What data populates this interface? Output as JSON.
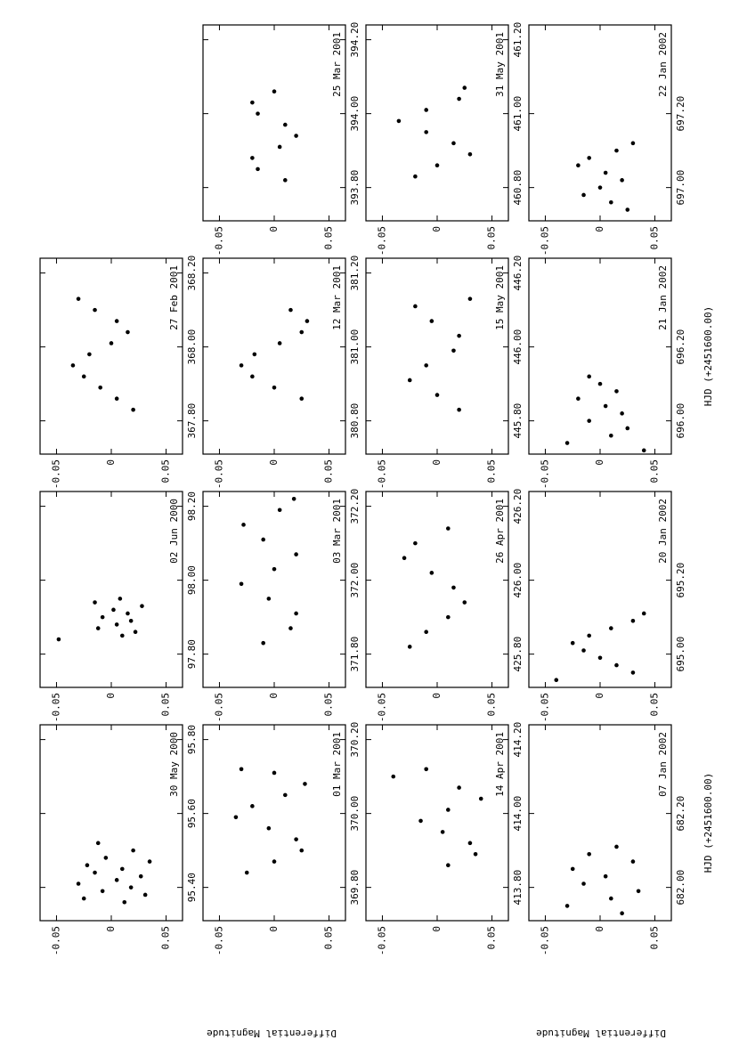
{
  "axis_labels": {
    "y": [
      "Differential Magnitude",
      "Differential Magnitude"
    ],
    "x": [
      "HJD (+2451600.00)",
      "HJD (+2451600.00)"
    ]
  },
  "chart_data": [
    {
      "type": "scatter",
      "title": "30 May 2000",
      "color": "#000000",
      "xlim": [
        95.31,
        95.84
      ],
      "xticks": [
        {
          "value": 95.4,
          "label": "95.40"
        },
        {
          "value": 95.6,
          "label": "95.60"
        },
        {
          "value": 95.8,
          "label": "95.80"
        }
      ],
      "ylim": [
        -0.065,
        0.065
      ],
      "yticks": [
        -0.05,
        0,
        0.05
      ],
      "x": [
        95.36,
        95.37,
        95.38,
        95.39,
        95.4,
        95.41,
        95.42,
        95.43,
        95.44,
        95.45,
        95.46,
        95.47,
        95.48,
        95.5,
        95.52
      ],
      "values": [
        0.012,
        -0.025,
        0.031,
        -0.008,
        0.018,
        -0.03,
        0.005,
        0.027,
        -0.015,
        0.01,
        -0.022,
        0.035,
        -0.005,
        0.02,
        -0.012
      ]
    },
    {
      "type": "scatter",
      "title": "02 Jun 2000",
      "color": "#000000",
      "xlim": [
        97.71,
        98.24
      ],
      "xticks": [
        {
          "value": 97.8,
          "label": "97.80"
        },
        {
          "value": 98.0,
          "label": "98.00"
        },
        {
          "value": 98.2,
          "label": "98.20"
        }
      ],
      "ylim": [
        -0.065,
        0.065
      ],
      "yticks": [
        -0.05,
        0,
        0.05
      ],
      "x": [
        97.84,
        97.85,
        97.86,
        97.87,
        97.88,
        97.89,
        97.9,
        97.91,
        97.92,
        97.93,
        97.94,
        97.95
      ],
      "values": [
        -0.048,
        0.01,
        0.022,
        -0.012,
        0.005,
        0.018,
        -0.008,
        0.015,
        0.002,
        0.028,
        -0.015,
        0.008
      ]
    },
    {
      "type": "scatter",
      "title": "27 Feb 2001",
      "color": "#000000",
      "xlim": [
        367.71,
        368.24
      ],
      "xticks": [
        {
          "value": 367.8,
          "label": "367.80"
        },
        {
          "value": 368.0,
          "label": "368.00"
        },
        {
          "value": 368.2,
          "label": "368.20"
        }
      ],
      "ylim": [
        -0.065,
        0.065
      ],
      "yticks": [
        -0.05,
        0,
        0.05
      ],
      "x": [
        367.83,
        367.86,
        367.89,
        367.92,
        367.95,
        367.98,
        368.01,
        368.04,
        368.07,
        368.1,
        368.13
      ],
      "values": [
        0.02,
        0.005,
        -0.01,
        -0.025,
        -0.035,
        -0.02,
        0.0,
        0.015,
        0.005,
        -0.015,
        -0.03
      ]
    },
    {
      "type": "scatter",
      "title": "01 Mar 2001",
      "color": "#000000",
      "xlim": [
        369.71,
        370.24
      ],
      "xticks": [
        {
          "value": 369.8,
          "label": "369.80"
        },
        {
          "value": 370.0,
          "label": "370.00"
        },
        {
          "value": 370.2,
          "label": "370.20"
        }
      ],
      "ylim": [
        -0.065,
        0.065
      ],
      "yticks": [
        -0.05,
        0,
        0.05
      ],
      "x": [
        369.84,
        369.87,
        369.9,
        369.93,
        369.96,
        369.99,
        370.02,
        370.05,
        370.08,
        370.11,
        370.12
      ],
      "values": [
        -0.025,
        0.0,
        0.025,
        0.02,
        -0.005,
        -0.035,
        -0.02,
        0.01,
        0.028,
        0.0,
        -0.03
      ]
    },
    {
      "type": "scatter",
      "title": "03 Mar 2001",
      "color": "#000000",
      "xlim": [
        371.71,
        372.24
      ],
      "xticks": [
        {
          "value": 371.8,
          "label": "371.80"
        },
        {
          "value": 372.0,
          "label": "372.00"
        },
        {
          "value": 372.2,
          "label": "372.20"
        }
      ],
      "ylim": [
        -0.065,
        0.065
      ],
      "yticks": [
        -0.05,
        0,
        0.05
      ],
      "x": [
        371.83,
        371.87,
        371.91,
        371.95,
        371.99,
        372.03,
        372.07,
        372.11,
        372.15,
        372.19,
        372.22
      ],
      "values": [
        -0.01,
        0.015,
        0.02,
        -0.005,
        -0.03,
        0.0,
        0.02,
        -0.01,
        -0.028,
        0.005,
        0.018
      ]
    },
    {
      "type": "scatter",
      "title": "12 Mar 2001",
      "color": "#000000",
      "xlim": [
        380.71,
        381.24
      ],
      "xticks": [
        {
          "value": 380.8,
          "label": "380.80"
        },
        {
          "value": 381.0,
          "label": "381.00"
        },
        {
          "value": 381.2,
          "label": "381.20"
        }
      ],
      "ylim": [
        -0.065,
        0.065
      ],
      "yticks": [
        -0.05,
        0,
        0.05
      ],
      "x": [
        380.86,
        380.89,
        380.92,
        380.95,
        380.98,
        381.01,
        381.04,
        381.07,
        381.1
      ],
      "values": [
        0.025,
        0.0,
        -0.02,
        -0.03,
        -0.018,
        0.005,
        0.025,
        0.03,
        0.015
      ]
    },
    {
      "type": "scatter",
      "title": "25 Mar 2001",
      "color": "#000000",
      "xlim": [
        393.71,
        394.24
      ],
      "xticks": [
        {
          "value": 393.8,
          "label": "393.80"
        },
        {
          "value": 394.0,
          "label": "394.00"
        },
        {
          "value": 394.2,
          "label": "394.20"
        }
      ],
      "ylim": [
        -0.065,
        0.065
      ],
      "yticks": [
        -0.05,
        0,
        0.05
      ],
      "x": [
        393.82,
        393.85,
        393.88,
        393.91,
        393.94,
        393.97,
        394.0,
        394.03,
        394.06
      ],
      "values": [
        0.01,
        -0.015,
        -0.02,
        0.005,
        0.02,
        0.01,
        -0.015,
        -0.02,
        0.0
      ]
    },
    {
      "type": "scatter",
      "title": "14 Apr 2001",
      "color": "#000000",
      "xlim": [
        413.71,
        414.24
      ],
      "xticks": [
        {
          "value": 413.8,
          "label": "413.80"
        },
        {
          "value": 414.0,
          "label": "414.00"
        },
        {
          "value": 414.2,
          "label": "414.20"
        }
      ],
      "ylim": [
        -0.065,
        0.065
      ],
      "yticks": [
        -0.05,
        0,
        0.05
      ],
      "x": [
        413.86,
        413.89,
        413.92,
        413.95,
        413.98,
        414.01,
        414.04,
        414.07,
        414.1,
        414.12
      ],
      "values": [
        0.01,
        0.035,
        0.03,
        0.005,
        -0.015,
        0.01,
        0.04,
        0.02,
        -0.04,
        -0.01
      ]
    },
    {
      "type": "scatter",
      "title": "26 Apr 2001",
      "color": "#000000",
      "xlim": [
        425.71,
        426.24
      ],
      "xticks": [
        {
          "value": 425.8,
          "label": "425.80"
        },
        {
          "value": 426.0,
          "label": "426.00"
        },
        {
          "value": 426.2,
          "label": "426.20"
        }
      ],
      "ylim": [
        -0.065,
        0.065
      ],
      "yticks": [
        -0.05,
        0,
        0.05
      ],
      "x": [
        425.82,
        425.86,
        425.9,
        425.94,
        425.98,
        426.02,
        426.06,
        426.1,
        426.14
      ],
      "values": [
        -0.025,
        -0.01,
        0.01,
        0.025,
        0.015,
        -0.005,
        -0.03,
        -0.02,
        0.01
      ]
    },
    {
      "type": "scatter",
      "title": "15 May 2001",
      "color": "#000000",
      "xlim": [
        445.71,
        446.24
      ],
      "xticks": [
        {
          "value": 445.8,
          "label": "445.80"
        },
        {
          "value": 446.0,
          "label": "446.00"
        },
        {
          "value": 446.2,
          "label": "446.20"
        }
      ],
      "ylim": [
        -0.065,
        0.065
      ],
      "yticks": [
        -0.05,
        0,
        0.05
      ],
      "x": [
        445.83,
        445.87,
        445.91,
        445.95,
        445.99,
        446.03,
        446.07,
        446.11,
        446.13
      ],
      "values": [
        0.02,
        0.0,
        -0.025,
        -0.01,
        0.015,
        0.02,
        -0.005,
        -0.02,
        0.03
      ]
    },
    {
      "type": "scatter",
      "title": "31 May 2001",
      "color": "#000000",
      "xlim": [
        460.71,
        461.24
      ],
      "xticks": [
        {
          "value": 460.8,
          "label": "460.80"
        },
        {
          "value": 461.0,
          "label": "461.00"
        },
        {
          "value": 461.2,
          "label": "461.20"
        }
      ],
      "ylim": [
        -0.065,
        0.065
      ],
      "yticks": [
        -0.05,
        0,
        0.05
      ],
      "x": [
        460.83,
        460.86,
        460.89,
        460.92,
        460.95,
        460.98,
        461.01,
        461.04,
        461.07
      ],
      "values": [
        -0.02,
        0.0,
        0.03,
        0.015,
        -0.01,
        -0.035,
        -0.01,
        0.02,
        0.025
      ]
    },
    {
      "type": "scatter",
      "title": "07 Jan 2002",
      "color": "#000000",
      "xlim": [
        681.91,
        682.44
      ],
      "xticks": [
        {
          "value": 682.0,
          "label": "682.00"
        },
        {
          "value": 682.2,
          "label": "682.20"
        }
      ],
      "ylim": [
        -0.065,
        0.065
      ],
      "yticks": [
        -0.05,
        0,
        0.05
      ],
      "x": [
        681.93,
        681.95,
        681.97,
        681.99,
        682.01,
        682.03,
        682.05,
        682.07,
        682.09,
        682.11
      ],
      "values": [
        0.02,
        -0.03,
        0.01,
        0.035,
        -0.015,
        0.005,
        -0.025,
        0.03,
        -0.01,
        0.015
      ]
    },
    {
      "type": "scatter",
      "title": "20 Jan 2002",
      "color": "#000000",
      "xlim": [
        694.91,
        695.44
      ],
      "xticks": [
        {
          "value": 695.0,
          "label": "695.00"
        },
        {
          "value": 695.2,
          "label": "695.20"
        }
      ],
      "ylim": [
        -0.065,
        0.065
      ],
      "yticks": [
        -0.05,
        0,
        0.05
      ],
      "x": [
        694.93,
        694.95,
        694.97,
        694.99,
        695.01,
        695.03,
        695.05,
        695.07,
        695.09,
        695.11
      ],
      "values": [
        -0.04,
        0.03,
        0.015,
        0.0,
        -0.015,
        -0.025,
        -0.01,
        0.01,
        0.03,
        0.04
      ]
    },
    {
      "type": "scatter",
      "title": "21 Jan 2002",
      "color": "#000000",
      "xlim": [
        695.91,
        696.44
      ],
      "xticks": [
        {
          "value": 696.0,
          "label": "696.00"
        },
        {
          "value": 696.2,
          "label": "696.20"
        }
      ],
      "ylim": [
        -0.065,
        0.065
      ],
      "yticks": [
        -0.05,
        0,
        0.05
      ],
      "x": [
        695.92,
        695.94,
        695.96,
        695.98,
        696.0,
        696.02,
        696.04,
        696.06,
        696.08,
        696.1,
        696.12
      ],
      "values": [
        0.04,
        -0.03,
        0.01,
        0.025,
        -0.01,
        0.02,
        0.005,
        -0.02,
        0.015,
        0.0,
        -0.01
      ]
    },
    {
      "type": "scatter",
      "title": "22 Jan 2002",
      "color": "#000000",
      "xlim": [
        696.91,
        697.44
      ],
      "xticks": [
        {
          "value": 697.0,
          "label": "697.00"
        },
        {
          "value": 697.2,
          "label": "697.20"
        }
      ],
      "ylim": [
        -0.065,
        0.065
      ],
      "yticks": [
        -0.05,
        0,
        0.05
      ],
      "x": [
        696.94,
        696.96,
        696.98,
        697.0,
        697.02,
        697.04,
        697.06,
        697.08,
        697.1,
        697.12
      ],
      "values": [
        0.025,
        0.01,
        -0.015,
        0.0,
        0.02,
        0.005,
        -0.02,
        -0.01,
        0.015,
        0.03
      ]
    }
  ]
}
